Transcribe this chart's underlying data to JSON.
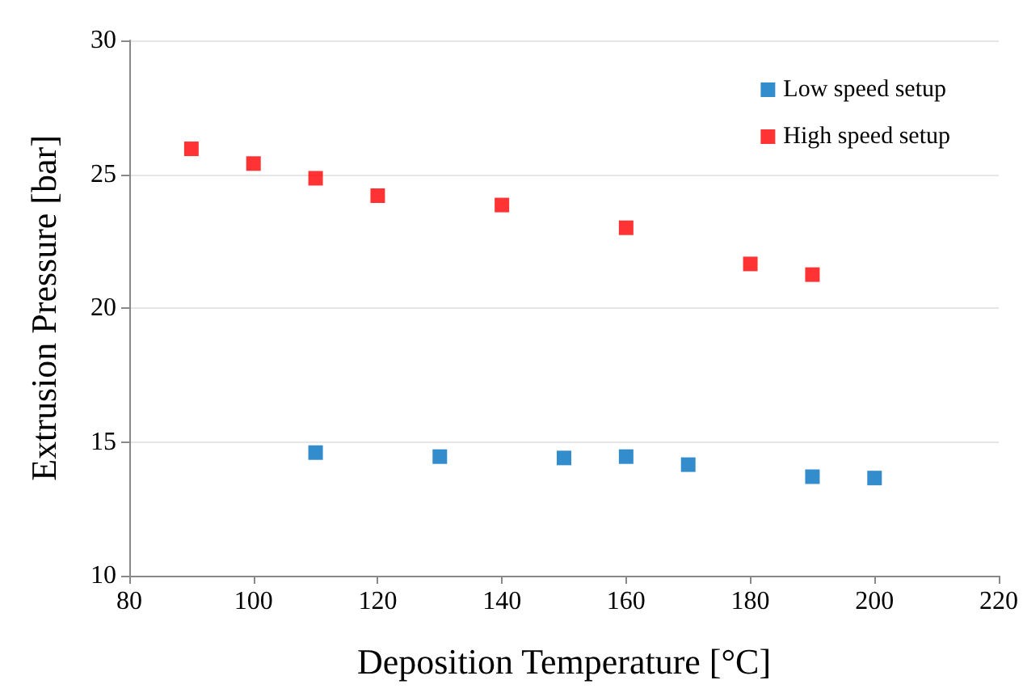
{
  "chart_data": {
    "type": "scatter",
    "xlabel": "Deposition Temperature [°C]",
    "ylabel": "Extrusion Pressure [bar]",
    "xlim": [
      80,
      220
    ],
    "xticks": [
      80,
      100,
      120,
      140,
      160,
      180,
      200,
      220
    ],
    "ylim": [
      10,
      30
    ],
    "yticks": [
      10,
      15,
      20,
      25,
      30
    ],
    "grid": "y",
    "legend": "top right",
    "marker": "square",
    "series": [
      {
        "name": "Low speed setup",
        "color": "#0070c0",
        "x": [
          110,
          130,
          150,
          160,
          170,
          190,
          200
        ],
        "values": [
          14.6,
          14.45,
          14.4,
          14.45,
          14.15,
          13.7,
          13.65
        ]
      },
      {
        "name": "High speed setup",
        "color": "#ff0000",
        "x": [
          90,
          100,
          110,
          120,
          140,
          160,
          180,
          190
        ],
        "values": [
          25.95,
          25.4,
          24.85,
          24.2,
          23.85,
          23.0,
          21.65,
          21.25
        ]
      }
    ]
  }
}
